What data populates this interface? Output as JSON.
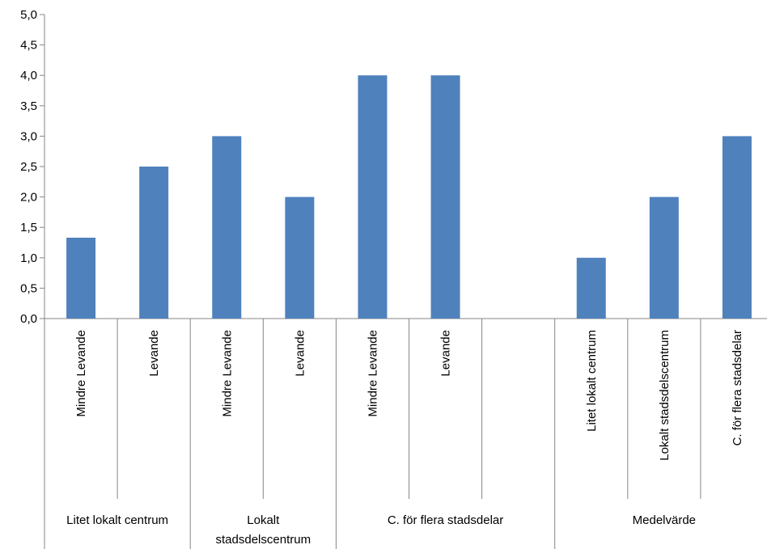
{
  "chart_data": {
    "type": "bar",
    "ylim": [
      0,
      5
    ],
    "y_ticks": [
      "0,0",
      "0,5",
      "1,0",
      "1,5",
      "2,0",
      "2,5",
      "3,0",
      "3,5",
      "4,0",
      "4,5",
      "5,0"
    ],
    "grid": false,
    "bar_color": "#4F81BD",
    "categories": [
      "Mindre Levande",
      "Levande",
      "Mindre Levande",
      "Levande",
      "Mindre Levande",
      "Levande",
      "",
      "Litet lokalt centrum",
      "Lokalt stadsdelscentrum",
      "C. för flera stadsdelar"
    ],
    "values": [
      1.33,
      2.5,
      3.0,
      2.0,
      4.0,
      4.0,
      null,
      1.0,
      2.0,
      3.0
    ],
    "groups": [
      {
        "label_lines": [
          "Litet lokalt centrum"
        ],
        "start": 0,
        "end": 2
      },
      {
        "label_lines": [
          "Lokalt",
          "stadsdelscentrum"
        ],
        "start": 2,
        "end": 4
      },
      {
        "label_lines": [
          "C. för flera stadsdelar"
        ],
        "start": 4,
        "end": 7
      },
      {
        "label_lines": [
          "Medelvärde"
        ],
        "start": 7,
        "end": 10
      }
    ]
  }
}
